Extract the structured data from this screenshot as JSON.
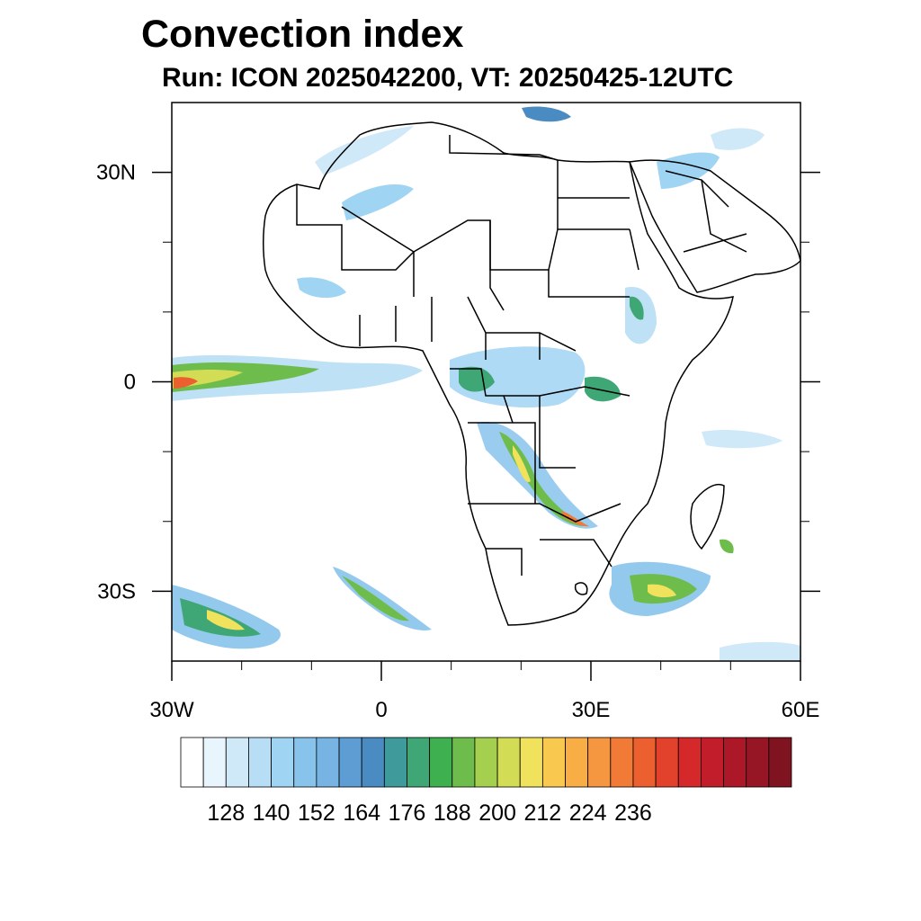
{
  "title": "Convection index",
  "subtitle": "Run: ICON 2025042200,  VT: 20250425-12UTC",
  "map": {
    "lon_range": [
      -30,
      60
    ],
    "lat_range": [
      -40,
      40
    ],
    "x_ticks": [
      {
        "lon": -30,
        "label": "30W"
      },
      {
        "lon": 0,
        "label": "0"
      },
      {
        "lon": 30,
        "label": "30E"
      },
      {
        "lon": 60,
        "label": "60E"
      }
    ],
    "y_ticks": [
      {
        "lat": 30,
        "label": "30N"
      },
      {
        "lat": 0,
        "label": "0"
      },
      {
        "lat": -30,
        "label": "30S"
      }
    ]
  },
  "colorbar": {
    "levels": [
      128,
      140,
      152,
      164,
      176,
      188,
      200,
      212,
      224,
      236
    ],
    "colors": [
      "#ffffff",
      "#e8f5fc",
      "#cfe9f8",
      "#b7def5",
      "#a0d4f3",
      "#88c3ec",
      "#77b3e3",
      "#5e9cd4",
      "#4a8bc2",
      "#3f9a9c",
      "#3fa676",
      "#3fb04f",
      "#6ebd4c",
      "#a5cf4f",
      "#d2dc55",
      "#f0e25c",
      "#f8c84f",
      "#f8ad45",
      "#f59640",
      "#f07a36",
      "#ec5f2f",
      "#e2412c",
      "#d5282a",
      "#c21d2a",
      "#ad1828",
      "#961625",
      "#7f1420"
    ]
  }
}
